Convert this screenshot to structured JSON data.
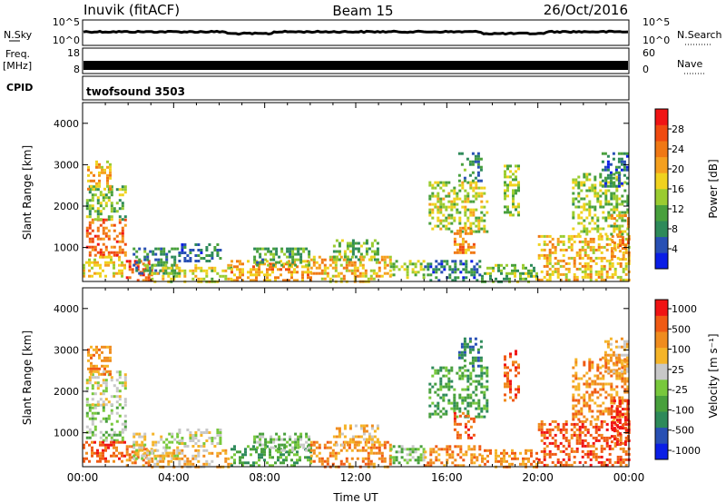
{
  "header": {
    "station": "Inuvik (fitACF)",
    "beam": "Beam 15",
    "date": "26/Oct/2016"
  },
  "status_panels": {
    "nsky_label": "N.Sky",
    "nsky_ticks": [
      "10^5",
      "10^0"
    ],
    "nsearch_label": "N.Search",
    "nsearch_ticks": [
      "10^5",
      "10^0"
    ],
    "freq_label_1": "Freq.",
    "freq_label_2": "[MHz]",
    "freq_ticks": [
      "18",
      "8"
    ],
    "nave_label": "Nave",
    "nave_ticks": [
      "60",
      "0"
    ],
    "cpid_label": "CPID",
    "cpid_value": "twofsound 3503"
  },
  "colors": {
    "power_scale": [
      "#0a1ee6",
      "#2850b4",
      "#2e8a5a",
      "#48a03c",
      "#9acc30",
      "#f0d21e",
      "#f5a01e",
      "#f07814",
      "#f04a10",
      "#f01414"
    ],
    "velocity_scale": [
      "#0a1ee6",
      "#2850b4",
      "#2e8a5a",
      "#48a03c",
      "#78c83c",
      "#c8c8c8",
      "#f5b428",
      "#f08c1e",
      "#f05a14",
      "#f01414"
    ],
    "ground_scatter": "#c8c8c8"
  },
  "chart_data": [
    {
      "type": "heatmap",
      "name": "power",
      "ylabel": "Slant Range [km]",
      "xlabel": "",
      "x_ticks": [],
      "y_ticks": [
        "1000",
        "2000",
        "3000",
        "4000"
      ],
      "ylim": [
        180,
        4500
      ],
      "xlim": [
        0,
        24
      ],
      "colorbar_label": "Power [dB]",
      "colorbar_ticks": [
        "4",
        "8",
        "12",
        "16",
        "20",
        "24",
        "28"
      ],
      "colorbar_range": [
        0,
        32
      ],
      "regions": [
        {
          "t0": 0.15,
          "t1": 1.9,
          "r0": 800,
          "r1": 1700,
          "v": 26
        },
        {
          "t0": 0.15,
          "t1": 1.9,
          "r0": 1700,
          "r1": 2500,
          "v": 12
        },
        {
          "t0": 0.2,
          "t1": 1.2,
          "r0": 2400,
          "r1": 3100,
          "v": 20
        },
        {
          "t0": 0.0,
          "t1": 1.9,
          "r0": 300,
          "r1": 800,
          "v": 18
        },
        {
          "t0": 1.9,
          "t1": 3.0,
          "r0": 200,
          "r1": 700,
          "v": 28
        },
        {
          "t0": 2.2,
          "t1": 4.2,
          "r0": 400,
          "r1": 1000,
          "v": 8
        },
        {
          "t0": 4.2,
          "t1": 6.0,
          "r0": 700,
          "r1": 1100,
          "v": 6
        },
        {
          "t0": 3.0,
          "t1": 6.5,
          "r0": 200,
          "r1": 600,
          "v": 16
        },
        {
          "t0": 6.5,
          "t1": 10.0,
          "r0": 200,
          "r1": 700,
          "v": 22
        },
        {
          "t0": 7.5,
          "t1": 10.0,
          "r0": 600,
          "r1": 1000,
          "v": 10
        },
        {
          "t0": 10.0,
          "t1": 13.5,
          "r0": 200,
          "r1": 800,
          "v": 20
        },
        {
          "t0": 11.0,
          "t1": 13.0,
          "r0": 700,
          "r1": 1200,
          "v": 12
        },
        {
          "t0": 13.5,
          "t1": 15.0,
          "r0": 250,
          "r1": 700,
          "v": 14
        },
        {
          "t0": 15.0,
          "t1": 17.5,
          "r0": 200,
          "r1": 700,
          "v": 6
        },
        {
          "t0": 15.2,
          "t1": 17.8,
          "r0": 1400,
          "r1": 2600,
          "v": 16
        },
        {
          "t0": 16.3,
          "t1": 17.2,
          "r0": 900,
          "r1": 1500,
          "v": 24
        },
        {
          "t0": 16.5,
          "t1": 17.5,
          "r0": 2600,
          "r1": 3300,
          "v": 8
        },
        {
          "t0": 17.5,
          "t1": 20.0,
          "r0": 200,
          "r1": 600,
          "v": 12
        },
        {
          "t0": 18.5,
          "t1": 19.2,
          "r0": 1800,
          "r1": 3000,
          "v": 14
        },
        {
          "t0": 20.0,
          "t1": 24.0,
          "r0": 200,
          "r1": 1300,
          "v": 20
        },
        {
          "t0": 21.5,
          "t1": 24.0,
          "r0": 1300,
          "r1": 2800,
          "v": 14
        },
        {
          "t0": 22.8,
          "t1": 23.9,
          "r0": 2500,
          "r1": 3300,
          "v": 6
        },
        {
          "t0": 23.2,
          "t1": 24.0,
          "r0": 700,
          "r1": 1800,
          "v": 24
        }
      ]
    },
    {
      "type": "heatmap",
      "name": "velocity",
      "ylabel": "Slant Range [km]",
      "xlabel": "Time UT",
      "x_ticks": [
        "00:00",
        "04:00",
        "08:00",
        "12:00",
        "16:00",
        "20:00",
        "00:00"
      ],
      "y_ticks": [
        "1000",
        "2000",
        "3000",
        "4000"
      ],
      "ylim": [
        180,
        4500
      ],
      "xlim": [
        0,
        24
      ],
      "colorbar_label": "Velocity [m s⁻¹]",
      "colorbar_ticks": [
        "1000",
        "500",
        "100",
        "25",
        "-25",
        "-100",
        "-500",
        "-1000"
      ],
      "regions": [
        {
          "t0": 0.15,
          "t1": 1.9,
          "r0": 800,
          "r1": 1700,
          "v": 4
        },
        {
          "t0": 0.15,
          "t1": 1.9,
          "r0": 1700,
          "r1": 2500,
          "v": 5
        },
        {
          "t0": 0.2,
          "t1": 1.2,
          "r0": 2400,
          "r1": 3100,
          "v": 7
        },
        {
          "t0": 0.0,
          "t1": 1.9,
          "r0": 300,
          "r1": 800,
          "v": 8
        },
        {
          "t0": 1.9,
          "t1": 3.0,
          "r0": 200,
          "r1": 700,
          "v": 7
        },
        {
          "t0": 2.2,
          "t1": 4.2,
          "r0": 400,
          "r1": 1000,
          "v": 5
        },
        {
          "t0": 4.2,
          "t1": 6.0,
          "r0": 700,
          "r1": 1100,
          "v": 5
        },
        {
          "t0": 3.0,
          "t1": 6.5,
          "r0": 200,
          "r1": 600,
          "v": 6
        },
        {
          "t0": 6.5,
          "t1": 10.0,
          "r0": 200,
          "r1": 700,
          "v": 3
        },
        {
          "t0": 7.5,
          "t1": 10.0,
          "r0": 600,
          "r1": 1000,
          "v": 4
        },
        {
          "t0": 10.0,
          "t1": 13.5,
          "r0": 200,
          "r1": 800,
          "v": 7
        },
        {
          "t0": 11.0,
          "t1": 13.0,
          "r0": 700,
          "r1": 1200,
          "v": 6
        },
        {
          "t0": 13.5,
          "t1": 15.0,
          "r0": 250,
          "r1": 700,
          "v": 4
        },
        {
          "t0": 15.0,
          "t1": 17.5,
          "r0": 200,
          "r1": 700,
          "v": 7
        },
        {
          "t0": 15.2,
          "t1": 17.8,
          "r0": 1400,
          "r1": 2600,
          "v": 3
        },
        {
          "t0": 16.3,
          "t1": 17.2,
          "r0": 900,
          "r1": 1500,
          "v": 8
        },
        {
          "t0": 16.5,
          "t1": 17.5,
          "r0": 2600,
          "r1": 3300,
          "v": 2
        },
        {
          "t0": 17.5,
          "t1": 20.0,
          "r0": 200,
          "r1": 600,
          "v": 7
        },
        {
          "t0": 18.5,
          "t1": 19.2,
          "r0": 1800,
          "r1": 3000,
          "v": 8
        },
        {
          "t0": 20.0,
          "t1": 24.0,
          "r0": 200,
          "r1": 1300,
          "v": 8
        },
        {
          "t0": 21.5,
          "t1": 24.0,
          "r0": 1300,
          "r1": 2800,
          "v": 7
        },
        {
          "t0": 22.8,
          "t1": 23.9,
          "r0": 2500,
          "r1": 3300,
          "v": 6
        },
        {
          "t0": 23.2,
          "t1": 24.0,
          "r0": 700,
          "r1": 1800,
          "v": 9
        }
      ]
    }
  ]
}
